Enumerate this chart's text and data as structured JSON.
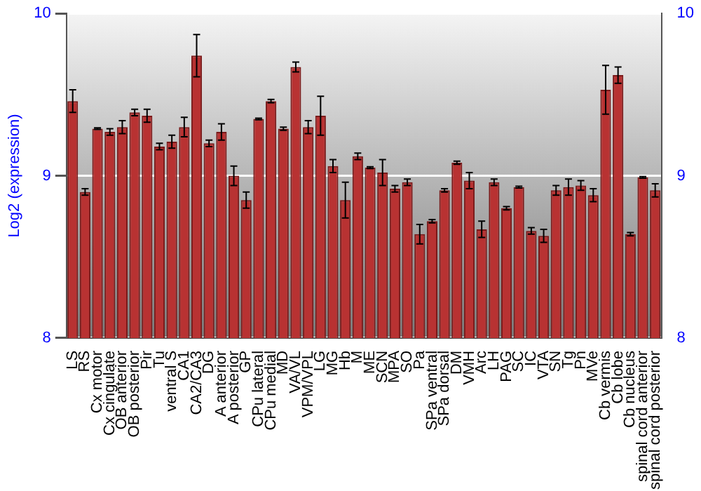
{
  "chart_data": {
    "type": "bar",
    "ylabel": "Log2 (expression)",
    "categories": [
      "LS",
      "RS",
      "Cx motor",
      "Cx cingulate",
      "OB anterior",
      "OB posterior",
      "Pir",
      "Tu",
      "ventral S",
      "CA1",
      "CA2/CA3",
      "DG",
      "A anterior",
      "A posterior",
      "GP",
      "CPu lateral",
      "CPu medial",
      "MD",
      "VA/VL",
      "VPM/VPL",
      "LG",
      "MG",
      "Hb",
      "M",
      "ME",
      "SCN",
      "MPA",
      "SO",
      "Pa",
      "SPa ventral",
      "SPa dorsal",
      "DM",
      "VMH",
      "Arc",
      "LH",
      "PAG",
      "SC",
      "IC",
      "VTA",
      "SN",
      "Tg",
      "Pn",
      "MVe",
      "Cb vermis",
      "Cb lobe",
      "Cb nucleus",
      "spinal cord anterior",
      "spinal cord posterior"
    ],
    "values": [
      9.46,
      8.9,
      9.29,
      9.27,
      9.3,
      9.39,
      9.37,
      9.18,
      9.21,
      9.3,
      9.74,
      9.2,
      9.27,
      9.0,
      8.85,
      9.35,
      9.46,
      9.29,
      9.67,
      9.3,
      9.37,
      9.06,
      8.85,
      9.12,
      9.05,
      9.02,
      8.92,
      8.96,
      8.64,
      8.72,
      8.91,
      9.08,
      8.97,
      8.67,
      8.96,
      8.8,
      8.93,
      8.66,
      8.63,
      8.91,
      8.93,
      8.94,
      8.88,
      9.53,
      9.62,
      8.64,
      8.99,
      8.91
    ],
    "errors": [
      0.07,
      0.02,
      0.005,
      0.02,
      0.04,
      0.02,
      0.04,
      0.02,
      0.04,
      0.06,
      0.13,
      0.02,
      0.05,
      0.06,
      0.05,
      0.005,
      0.01,
      0.01,
      0.03,
      0.04,
      0.12,
      0.04,
      0.11,
      0.02,
      0.005,
      0.08,
      0.02,
      0.02,
      0.06,
      0.01,
      0.01,
      0.01,
      0.05,
      0.05,
      0.02,
      0.01,
      0.005,
      0.02,
      0.04,
      0.03,
      0.05,
      0.03,
      0.04,
      0.15,
      0.05,
      0.01,
      0.005,
      0.04
    ],
    "color": "#b83232",
    "ylim": [
      8,
      10
    ],
    "yticks": [
      8,
      9,
      10
    ],
    "y2lim": [
      8,
      10
    ],
    "y2ticks": [
      8,
      9,
      10
    ],
    "grid": "y",
    "legend": false
  }
}
